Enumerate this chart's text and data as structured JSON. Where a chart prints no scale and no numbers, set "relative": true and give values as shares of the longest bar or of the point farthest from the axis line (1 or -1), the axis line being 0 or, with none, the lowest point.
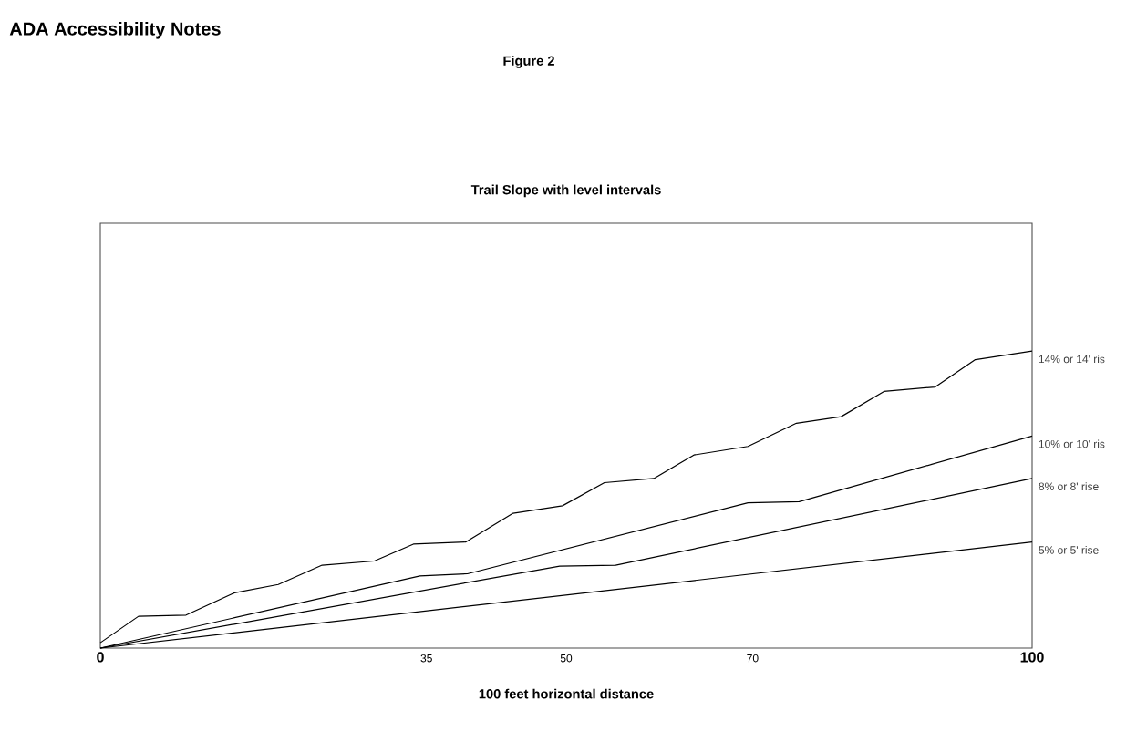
{
  "chart_data": {
    "type": "line",
    "title": "Trail Slope with level intervals",
    "xlabel": "100 feet horizontal distance",
    "annotations": [
      "ADA Accessibility Notes",
      "Figure 2"
    ],
    "relative": true,
    "xlim": [
      0,
      100
    ],
    "xticks": [
      {
        "value": 0,
        "label": "0"
      },
      {
        "value": 35,
        "label": "35"
      },
      {
        "value": 50,
        "label": "50"
      },
      {
        "value": 70,
        "label": "70"
      },
      {
        "value": 100,
        "label": "100"
      }
    ],
    "series": [
      {
        "name": "14% or 14' ris",
        "color": "#000000",
        "x": [
          0,
          4.1,
          9.2,
          14.4,
          19.1,
          23.8,
          29.4,
          33.6,
          39.2,
          44.3,
          49.6,
          54.1,
          59.4,
          63.7,
          69.5,
          74.7,
          79.5,
          84.1,
          89.6,
          93.9,
          100
        ],
        "values": [
          0.018,
          0.107,
          0.111,
          0.186,
          0.214,
          0.279,
          0.293,
          0.35,
          0.357,
          0.454,
          0.479,
          0.557,
          0.571,
          0.65,
          0.679,
          0.757,
          0.779,
          0.864,
          0.879,
          0.971,
          1
        ]
      },
      {
        "name": "10% or 10' ris",
        "color": "#000000",
        "x": [
          0,
          34.3,
          39.4,
          69.5,
          75,
          100
        ],
        "values": [
          0,
          0.243,
          0.25,
          0.489,
          0.493,
          0.714
        ]
      },
      {
        "name": "8% or 8' rise",
        "color": "#000000",
        "x": [
          0,
          49.3,
          55.3,
          100
        ],
        "values": [
          0,
          0.276,
          0.279,
          0.571
        ]
      },
      {
        "name": "5% or 5' rise",
        "color": "#000000",
        "x": [
          0,
          100
        ],
        "values": [
          0,
          0.357
        ]
      }
    ]
  }
}
